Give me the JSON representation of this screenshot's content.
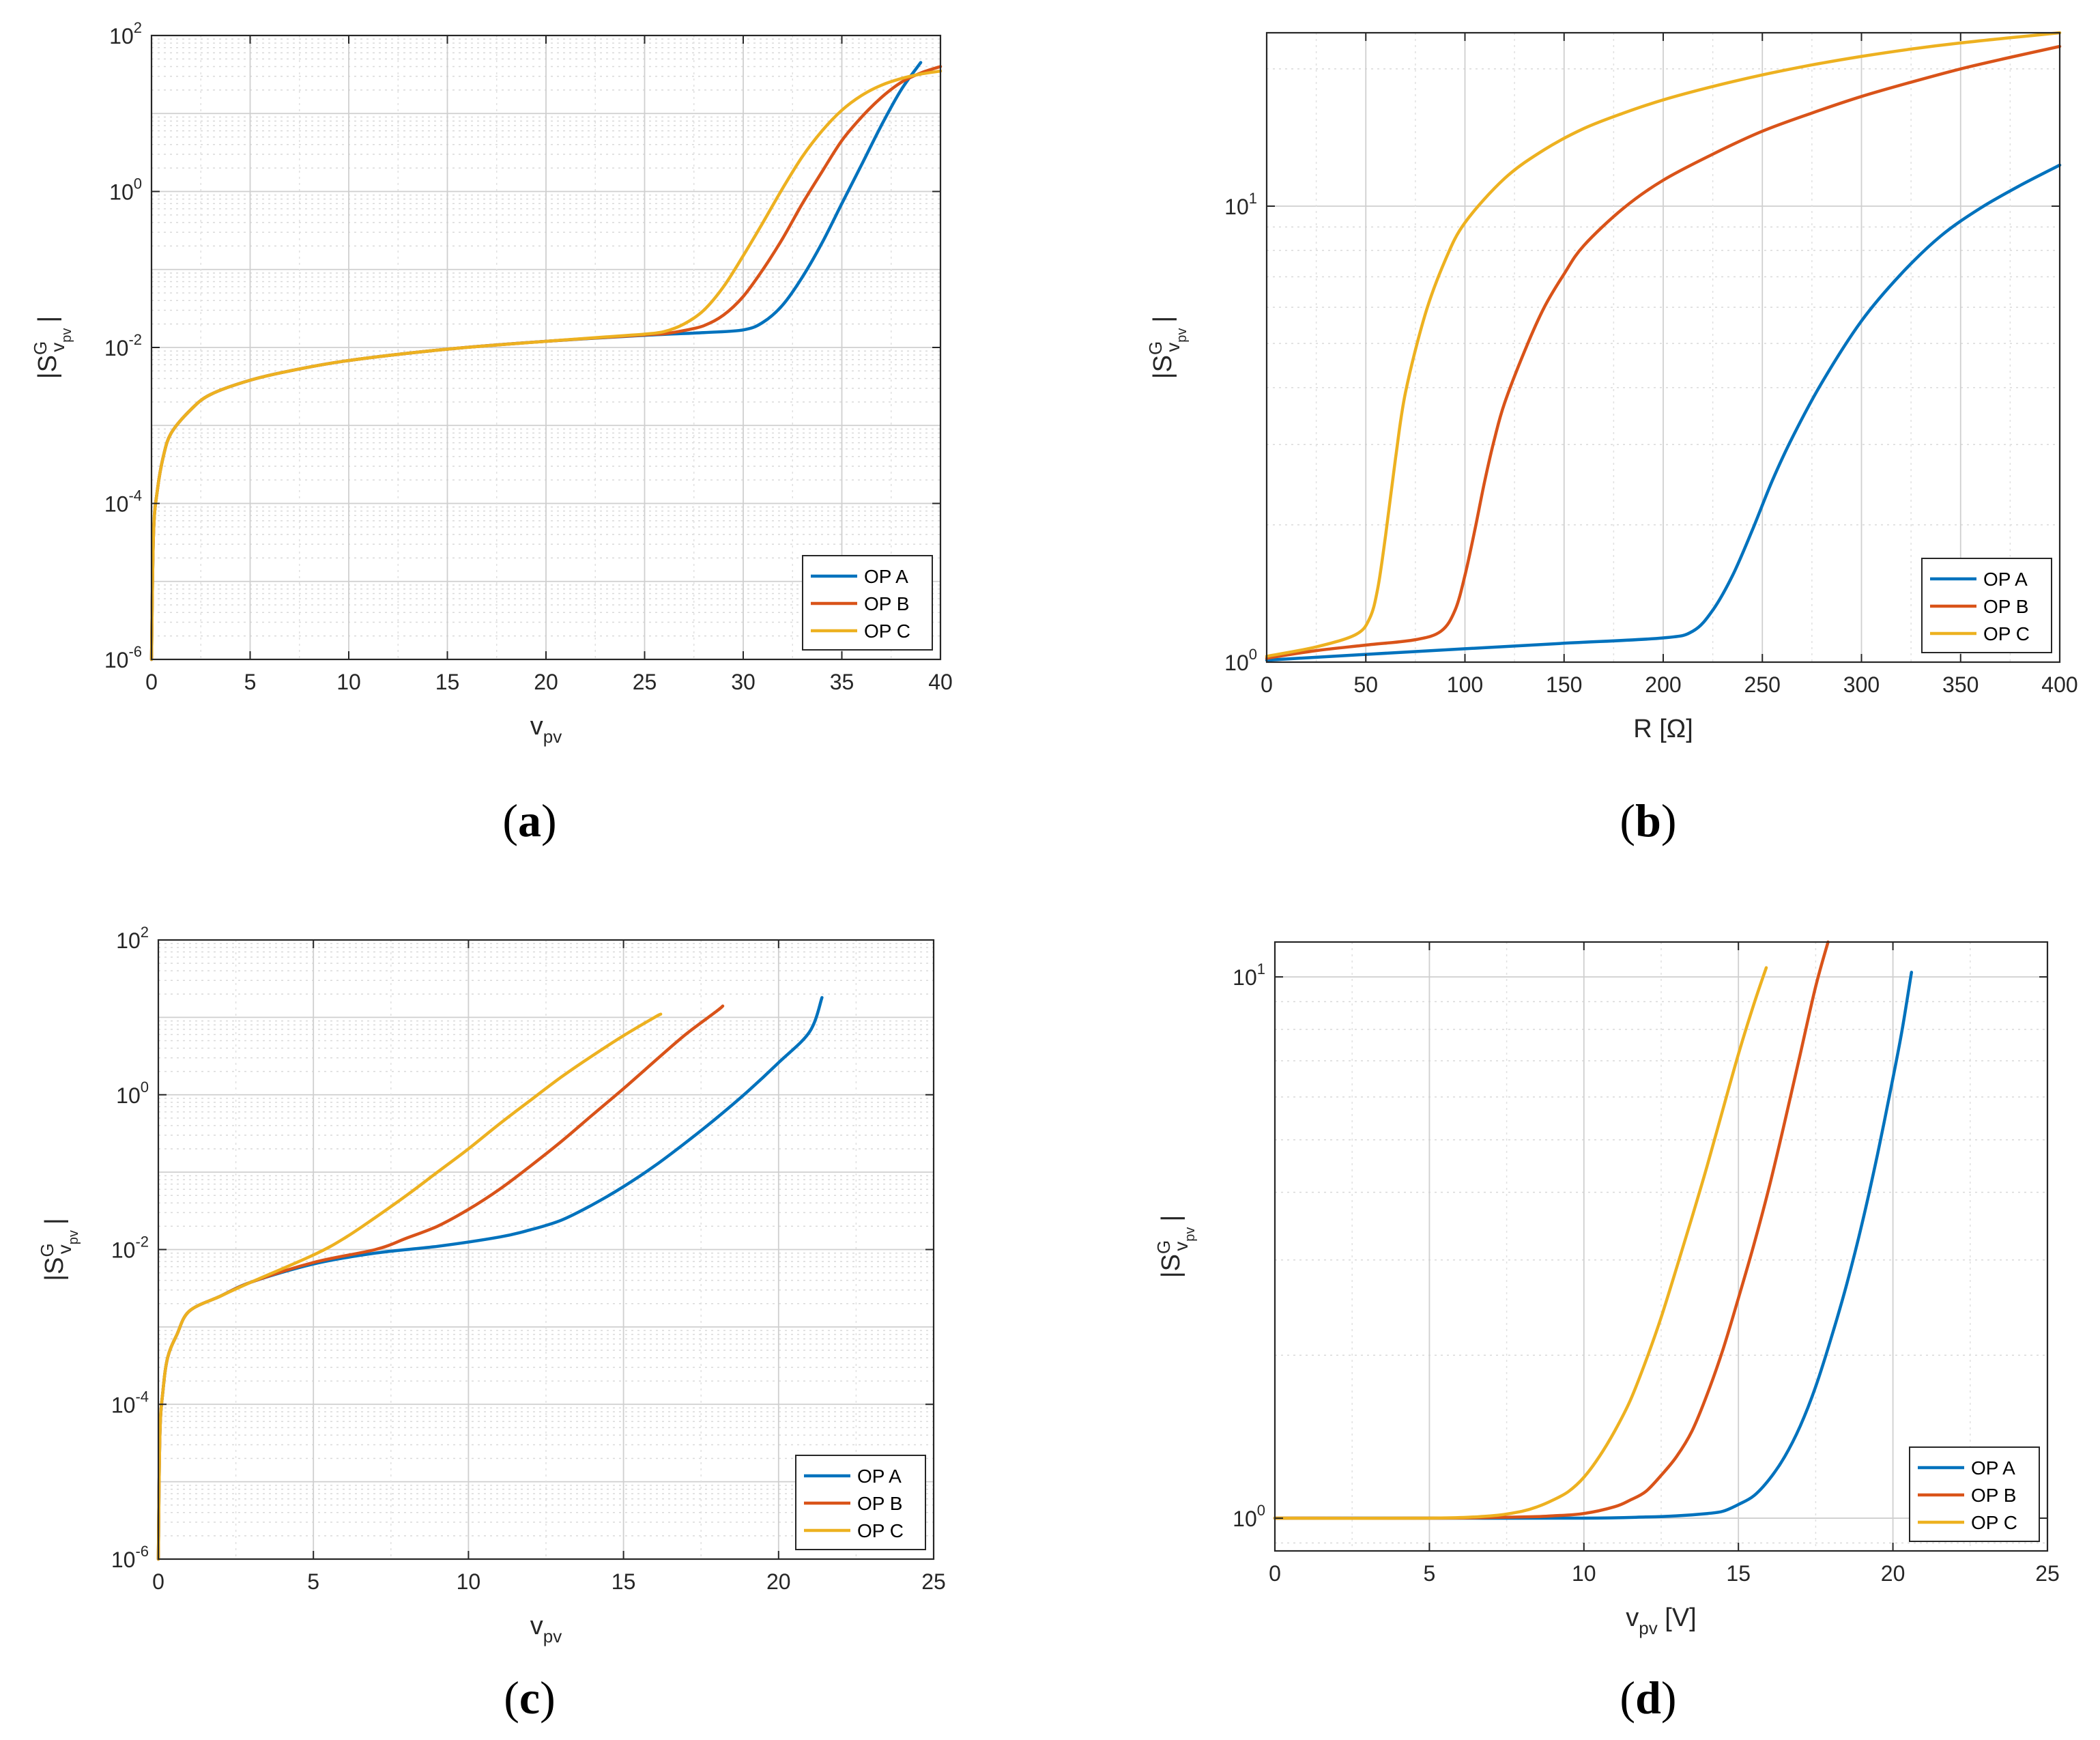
{
  "figure": {
    "ylabel_main": "|S",
    "ylabel_super": "G",
    "ylabel_sub": "v",
    "ylabel_subsub": "pv",
    "ylabel_close": "|"
  },
  "chart_data": [
    {
      "type": "line",
      "id": "a",
      "caption": "a",
      "xlabel_main": "v",
      "xlabel_sub": "pv",
      "xlabel_suffix": "",
      "yscale": "log",
      "xlim": [
        0,
        40
      ],
      "ylim": [
        1e-06,
        100
      ],
      "xticks": [
        "0",
        "5",
        "10",
        "15",
        "20",
        "25",
        "30",
        "35",
        "40"
      ],
      "yticks": [
        {
          "base": "10",
          "exp": "-6"
        },
        {
          "base": "10",
          "exp": "-4"
        },
        {
          "base": "10",
          "exp": "-2"
        },
        {
          "base": "10",
          "exp": "0"
        },
        {
          "base": "10",
          "exp": "2"
        }
      ],
      "grid": true,
      "legend": "bottom-right",
      "series": [
        {
          "name": "OP A",
          "color": "#0072BD",
          "x": [
            0,
            0.1,
            0.3,
            0.6,
            1,
            2,
            3,
            5,
            7,
            10,
            15,
            20,
            25,
            28,
            30,
            31,
            32,
            33,
            34,
            35,
            36,
            37,
            38,
            39
          ],
          "y": [
            1e-06,
            4e-05,
            0.00015,
            0.0004,
            0.0008,
            0.0016,
            0.0025,
            0.0038,
            0.005,
            0.0068,
            0.0095,
            0.012,
            0.0143,
            0.0155,
            0.0168,
            0.021,
            0.035,
            0.08,
            0.22,
            0.7,
            2.2,
            7,
            20,
            45
          ]
        },
        {
          "name": "OP B",
          "color": "#D95319",
          "x": [
            0,
            0.1,
            0.3,
            0.6,
            1,
            2,
            3,
            5,
            7,
            10,
            15,
            20,
            25,
            26,
            27,
            28,
            29,
            30,
            31,
            32,
            33,
            34,
            35,
            36,
            37,
            38,
            39,
            40
          ],
          "y": [
            1e-06,
            4e-05,
            0.00015,
            0.0004,
            0.0008,
            0.0016,
            0.0025,
            0.0038,
            0.005,
            0.0068,
            0.0095,
            0.012,
            0.0145,
            0.015,
            0.0165,
            0.019,
            0.026,
            0.045,
            0.1,
            0.25,
            0.7,
            1.8,
            4.5,
            9,
            16,
            25,
            33,
            40
          ]
        },
        {
          "name": "OP C",
          "color": "#EDB120",
          "x": [
            0,
            0.1,
            0.3,
            0.6,
            1,
            2,
            3,
            5,
            7,
            10,
            15,
            20,
            24,
            25,
            26,
            27,
            28,
            29,
            30,
            31,
            32,
            33,
            34,
            35,
            36,
            37,
            38,
            39,
            40
          ],
          "y": [
            1e-06,
            4e-05,
            0.00015,
            0.0004,
            0.0008,
            0.0016,
            0.0025,
            0.0038,
            0.005,
            0.0068,
            0.0095,
            0.012,
            0.0142,
            0.0148,
            0.016,
            0.02,
            0.03,
            0.06,
            0.15,
            0.4,
            1.1,
            2.8,
            6,
            11,
            17,
            23,
            28,
            32,
            35
          ]
        }
      ]
    },
    {
      "type": "line",
      "id": "b",
      "caption": "b",
      "xlabel_main": "R [Ω]",
      "xlabel_sub": "",
      "xlabel_suffix": "",
      "yscale": "log",
      "xlim": [
        0,
        400
      ],
      "ylim": [
        1,
        24
      ],
      "xticks": [
        "0",
        "50",
        "100",
        "150",
        "200",
        "250",
        "300",
        "350",
        "400"
      ],
      "yticks": [
        {
          "base": "10",
          "exp": "0"
        },
        {
          "base": "10",
          "exp": "1"
        }
      ],
      "grid": true,
      "legend": "bottom-right",
      "series": [
        {
          "name": "OP A",
          "color": "#0072BD",
          "x": [
            0,
            50,
            100,
            150,
            200,
            215,
            225,
            235,
            245,
            255,
            265,
            280,
            300,
            320,
            340,
            360,
            380,
            400
          ],
          "y": [
            1.01,
            1.04,
            1.07,
            1.1,
            1.13,
            1.17,
            1.3,
            1.55,
            1.95,
            2.5,
            3.1,
            4.1,
            5.6,
            7.1,
            8.6,
            9.9,
            11.1,
            12.3
          ]
        },
        {
          "name": "OP B",
          "color": "#D95319",
          "x": [
            0,
            25,
            50,
            75,
            88,
            95,
            100,
            105,
            110,
            115,
            120,
            130,
            140,
            150,
            160,
            180,
            200,
            225,
            250,
            275,
            300,
            325,
            350,
            375,
            400
          ],
          "y": [
            1.02,
            1.06,
            1.09,
            1.12,
            1.17,
            1.3,
            1.55,
            1.95,
            2.5,
            3.1,
            3.7,
            4.8,
            6.0,
            7.1,
            8.2,
            9.9,
            11.4,
            13.0,
            14.6,
            16.0,
            17.4,
            18.7,
            20.0,
            21.2,
            22.4
          ]
        },
        {
          "name": "OP C",
          "color": "#EDB120",
          "x": [
            0,
            25,
            45,
            52,
            56,
            60,
            65,
            70,
            80,
            90,
            100,
            120,
            140,
            160,
            180,
            200,
            225,
            250,
            275,
            300,
            325,
            350,
            375,
            400
          ],
          "y": [
            1.03,
            1.08,
            1.15,
            1.25,
            1.45,
            1.9,
            2.8,
            3.9,
            5.8,
            7.6,
            9.2,
            11.5,
            13.3,
            14.8,
            16.0,
            17.1,
            18.3,
            19.4,
            20.4,
            21.3,
            22.1,
            22.8,
            23.4,
            24.0
          ]
        }
      ]
    },
    {
      "type": "line",
      "id": "c",
      "caption": "c",
      "xlabel_main": "v",
      "xlabel_sub": "pv",
      "xlabel_suffix": "",
      "yscale": "log",
      "xlim": [
        0,
        25
      ],
      "ylim": [
        1e-06,
        100
      ],
      "xticks": [
        "0",
        "5",
        "10",
        "15",
        "20",
        "25"
      ],
      "yticks": [
        {
          "base": "10",
          "exp": "-6"
        },
        {
          "base": "10",
          "exp": "-4"
        },
        {
          "base": "10",
          "exp": "-2"
        },
        {
          "base": "10",
          "exp": "0"
        },
        {
          "base": "10",
          "exp": "2"
        }
      ],
      "grid": true,
      "legend": "bottom-right",
      "series": [
        {
          "name": "OP A",
          "color": "#0072BD",
          "x": [
            0,
            0.05,
            0.15,
            0.3,
            0.6,
            1,
            2,
            3,
            5,
            7,
            9,
            11,
            12,
            13,
            14,
            15,
            16,
            17,
            18,
            19,
            20,
            21,
            21.4
          ],
          "y": [
            1e-06,
            4e-05,
            0.00015,
            0.0004,
            0.0008,
            0.0016,
            0.0025,
            0.0038,
            0.0065,
            0.009,
            0.011,
            0.0145,
            0.018,
            0.024,
            0.038,
            0.065,
            0.12,
            0.24,
            0.5,
            1.1,
            2.6,
            6.5,
            18
          ]
        },
        {
          "name": "OP B",
          "color": "#D95319",
          "x": [
            0,
            0.05,
            0.15,
            0.3,
            0.6,
            1,
            2,
            3,
            5,
            7,
            8,
            9,
            10,
            11,
            12,
            13,
            14,
            15,
            16,
            17,
            18,
            18.2
          ],
          "y": [
            1e-06,
            4e-05,
            0.00015,
            0.0004,
            0.0008,
            0.0016,
            0.0025,
            0.0038,
            0.0068,
            0.01,
            0.014,
            0.02,
            0.033,
            0.06,
            0.12,
            0.25,
            0.55,
            1.2,
            2.7,
            6,
            12,
            14
          ]
        },
        {
          "name": "OP C",
          "color": "#EDB120",
          "x": [
            0,
            0.05,
            0.15,
            0.3,
            0.6,
            1,
            2,
            3,
            5,
            6,
            7,
            8,
            9,
            10,
            11,
            12,
            13,
            14,
            15,
            16,
            16.2
          ],
          "y": [
            1e-06,
            4e-05,
            0.00015,
            0.0004,
            0.0008,
            0.0016,
            0.0025,
            0.0038,
            0.0085,
            0.014,
            0.026,
            0.05,
            0.1,
            0.2,
            0.42,
            0.85,
            1.7,
            3.2,
            5.8,
            10,
            11
          ]
        }
      ]
    },
    {
      "type": "line",
      "id": "d",
      "caption": "d",
      "xlabel_main": "v",
      "xlabel_sub": "pv",
      "xlabel_suffix": " [V]",
      "yscale": "log",
      "xlim": [
        0,
        25
      ],
      "ylim": [
        0.87,
        11.6
      ],
      "xticks": [
        "0",
        "5",
        "10",
        "15",
        "20",
        "25"
      ],
      "yticks": [
        {
          "base": "10",
          "exp": "0"
        },
        {
          "base": "10",
          "exp": "1"
        }
      ],
      "grid": true,
      "legend": "bottom-right",
      "series": [
        {
          "name": "OP A",
          "color": "#0072BD",
          "x": [
            0,
            5,
            10,
            12,
            13,
            14,
            14.5,
            15,
            15.5,
            16,
            16.5,
            17,
            17.5,
            18,
            18.5,
            19,
            19.5,
            20,
            20.3,
            20.6
          ],
          "y": [
            1.0,
            1.0,
            1.0,
            1.005,
            1.01,
            1.02,
            1.03,
            1.06,
            1.1,
            1.18,
            1.3,
            1.48,
            1.75,
            2.15,
            2.7,
            3.5,
            4.7,
            6.5,
            8.0,
            10.2
          ]
        },
        {
          "name": "OP B",
          "color": "#D95319",
          "x": [
            0,
            5,
            8,
            9,
            10,
            11,
            11.5,
            12,
            12.5,
            13,
            13.5,
            14,
            14.5,
            15,
            15.5,
            16,
            16.5,
            17,
            17.5,
            17.9
          ],
          "y": [
            1.0,
            1.0,
            1.005,
            1.01,
            1.02,
            1.05,
            1.08,
            1.12,
            1.2,
            1.3,
            1.45,
            1.7,
            2.05,
            2.55,
            3.2,
            4.1,
            5.4,
            7.2,
            9.6,
            11.6
          ]
        },
        {
          "name": "OP C",
          "color": "#EDB120",
          "x": [
            0,
            5,
            7,
            8,
            8.5,
            9,
            9.5,
            10,
            10.5,
            11,
            11.5,
            12,
            12.5,
            13,
            13.5,
            14,
            14.5,
            15,
            15.5,
            15.9
          ],
          "y": [
            1.0,
            1.0,
            1.01,
            1.03,
            1.05,
            1.08,
            1.12,
            1.19,
            1.3,
            1.45,
            1.65,
            1.95,
            2.35,
            2.9,
            3.6,
            4.5,
            5.7,
            7.2,
            8.9,
            10.4
          ]
        }
      ]
    }
  ]
}
